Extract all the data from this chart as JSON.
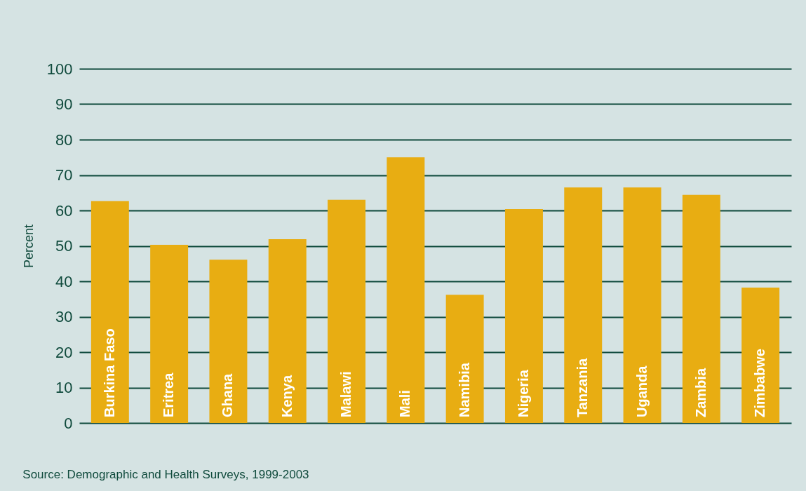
{
  "chart_data": {
    "type": "bar",
    "ylabel": "Percent",
    "categories": [
      "Burkina Faso",
      "Eritrea",
      "Ghana",
      "Kenya",
      "Malawi",
      "Mali",
      "Namibia",
      "Nigeria",
      "Tanzania",
      "Uganda",
      "Zambia",
      "Zimbabwe"
    ],
    "values": [
      62.6,
      50.3,
      46.1,
      51.9,
      63.0,
      75.0,
      36.2,
      60.4,
      66.5,
      66.5,
      64.4,
      38.2
    ],
    "color": "#e8ad12",
    "ylim": [
      0,
      100
    ],
    "yticks": [
      0,
      10,
      20,
      30,
      40,
      50,
      60,
      70,
      80,
      90,
      100
    ],
    "grid": "y",
    "annotations": [
      "Source: Demographic and Health Surveys, 1999-2003"
    ]
  }
}
